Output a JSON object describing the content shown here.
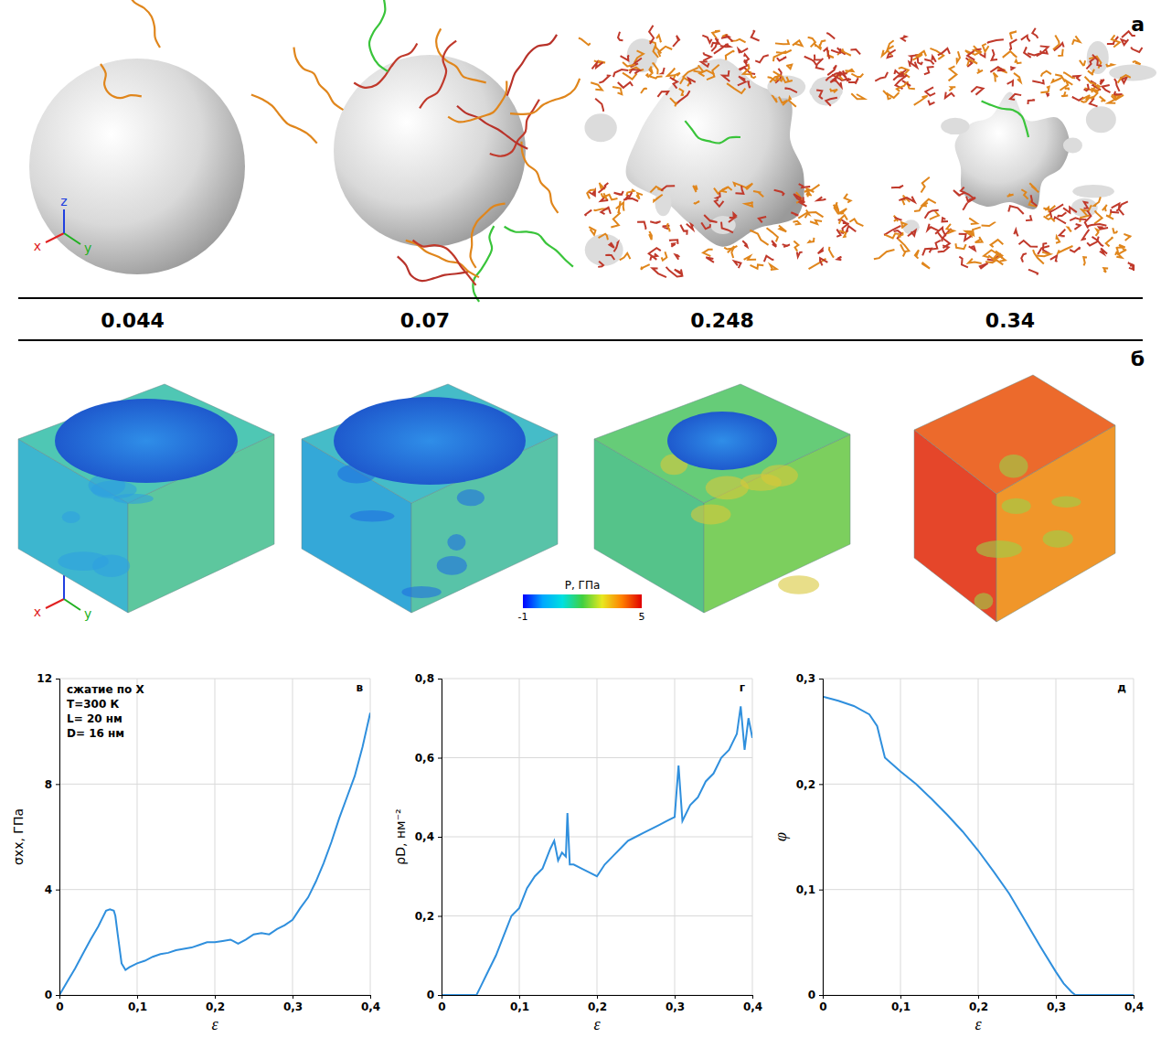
{
  "figure": {
    "row_a": {
      "letter": "а"
    },
    "row_b": {
      "letter": "б",
      "colorbar": {
        "label": "P, ГПа",
        "range": [
          -1,
          5
        ],
        "ticks": [
          -1,
          5
        ]
      }
    },
    "strains": [
      0.044,
      0.07,
      0.248,
      0.34
    ],
    "axis_triad": [
      "x",
      "y",
      "z"
    ]
  },
  "chart_data": [
    {
      "type": "line",
      "letter": "в",
      "annotation": [
        "сжатие по X",
        "T=300 К",
        "L= 20 нм",
        "D= 16 нм"
      ],
      "xlabel": "ε",
      "ylabel": "σxx, ГПа",
      "x": [
        0,
        0.01,
        0.02,
        0.03,
        0.04,
        0.05,
        0.055,
        0.06,
        0.065,
        0.07,
        0.072,
        0.075,
        0.08,
        0.085,
        0.09,
        0.1,
        0.11,
        0.12,
        0.13,
        0.14,
        0.15,
        0.16,
        0.17,
        0.18,
        0.19,
        0.2,
        0.21,
        0.22,
        0.23,
        0.24,
        0.25,
        0.26,
        0.27,
        0.28,
        0.29,
        0.3,
        0.31,
        0.32,
        0.33,
        0.34,
        0.35,
        0.36,
        0.37,
        0.38,
        0.39,
        0.4
      ],
      "series": [
        {
          "color": "#2f8fdd",
          "values": [
            0,
            0.5,
            1.0,
            1.55,
            2.1,
            2.6,
            2.9,
            3.2,
            3.25,
            3.2,
            3.0,
            2.3,
            1.2,
            0.95,
            1.05,
            1.2,
            1.3,
            1.45,
            1.55,
            1.6,
            1.7,
            1.75,
            1.8,
            1.9,
            2.0,
            2.0,
            2.05,
            2.1,
            1.95,
            2.1,
            2.3,
            2.35,
            2.3,
            2.5,
            2.65,
            2.85,
            3.3,
            3.7,
            4.3,
            5.0,
            5.8,
            6.7,
            7.5,
            8.3,
            9.4,
            10.7
          ]
        }
      ],
      "xlim": [
        0,
        0.4
      ],
      "ylim": [
        0,
        12
      ],
      "xticks": [
        0,
        {
          "value": 0.1,
          "label": "0,1"
        },
        {
          "value": 0.2,
          "label": "0,2"
        },
        {
          "value": 0.3,
          "label": "0,3"
        },
        {
          "value": 0.4,
          "label": "0,4"
        }
      ],
      "yticks": [
        0,
        4,
        8,
        12
      ],
      "grid": true
    },
    {
      "type": "line",
      "letter": "г",
      "xlabel": "ε",
      "ylabel": "ρD, нм⁻²",
      "x": [
        0,
        0.045,
        0.05,
        0.06,
        0.07,
        0.08,
        0.09,
        0.1,
        0.11,
        0.12,
        0.13,
        0.14,
        0.145,
        0.15,
        0.155,
        0.16,
        0.162,
        0.165,
        0.17,
        0.18,
        0.19,
        0.2,
        0.21,
        0.22,
        0.23,
        0.24,
        0.25,
        0.26,
        0.27,
        0.28,
        0.29,
        0.3,
        0.305,
        0.31,
        0.32,
        0.33,
        0.34,
        0.35,
        0.36,
        0.37,
        0.38,
        0.385,
        0.39,
        0.395,
        0.4
      ],
      "series": [
        {
          "color": "#2f8fdd",
          "values": [
            0,
            0,
            0.02,
            0.06,
            0.1,
            0.15,
            0.2,
            0.22,
            0.27,
            0.3,
            0.32,
            0.37,
            0.39,
            0.34,
            0.36,
            0.35,
            0.46,
            0.33,
            0.33,
            0.32,
            0.31,
            0.3,
            0.33,
            0.35,
            0.37,
            0.39,
            0.4,
            0.41,
            0.42,
            0.43,
            0.44,
            0.45,
            0.58,
            0.44,
            0.48,
            0.5,
            0.54,
            0.56,
            0.6,
            0.62,
            0.66,
            0.73,
            0.62,
            0.7,
            0.65
          ]
        }
      ],
      "xlim": [
        0,
        0.4
      ],
      "ylim": [
        0,
        0.8
      ],
      "xticks": [
        0,
        {
          "value": 0.1,
          "label": "0,1"
        },
        {
          "value": 0.2,
          "label": "0,2"
        },
        {
          "value": 0.3,
          "label": "0,3"
        },
        {
          "value": 0.4,
          "label": "0,4"
        }
      ],
      "yticks": [
        0,
        {
          "value": 0.2,
          "label": "0,2"
        },
        {
          "value": 0.4,
          "label": "0,4"
        },
        {
          "value": 0.6,
          "label": "0,6"
        },
        {
          "value": 0.8,
          "label": "0,8"
        }
      ],
      "grid": true
    },
    {
      "type": "line",
      "letter": "д",
      "xlabel": "ε",
      "ylabel": "φ",
      "x": [
        0,
        0.02,
        0.04,
        0.06,
        0.07,
        0.075,
        0.08,
        0.1,
        0.12,
        0.14,
        0.16,
        0.18,
        0.2,
        0.22,
        0.24,
        0.26,
        0.28,
        0.3,
        0.31,
        0.32,
        0.325,
        0.36,
        0.4
      ],
      "series": [
        {
          "color": "#2f8fdd",
          "values": [
            0.283,
            0.279,
            0.274,
            0.266,
            0.255,
            0.24,
            0.225,
            0.212,
            0.2,
            0.186,
            0.171,
            0.155,
            0.137,
            0.117,
            0.096,
            0.071,
            0.046,
            0.022,
            0.011,
            0.003,
            0,
            0,
            0
          ]
        }
      ],
      "xlim": [
        0,
        0.4
      ],
      "ylim": [
        0,
        0.3
      ],
      "xticks": [
        0,
        {
          "value": 0.1,
          "label": "0,1"
        },
        {
          "value": 0.2,
          "label": "0,2"
        },
        {
          "value": 0.3,
          "label": "0,3"
        },
        {
          "value": 0.4,
          "label": "0,4"
        }
      ],
      "yticks": [
        0,
        {
          "value": 0.1,
          "label": "0,1"
        },
        {
          "value": 0.2,
          "label": "0,2"
        },
        {
          "value": 0.3,
          "label": "0,3"
        }
      ],
      "grid": true
    }
  ]
}
